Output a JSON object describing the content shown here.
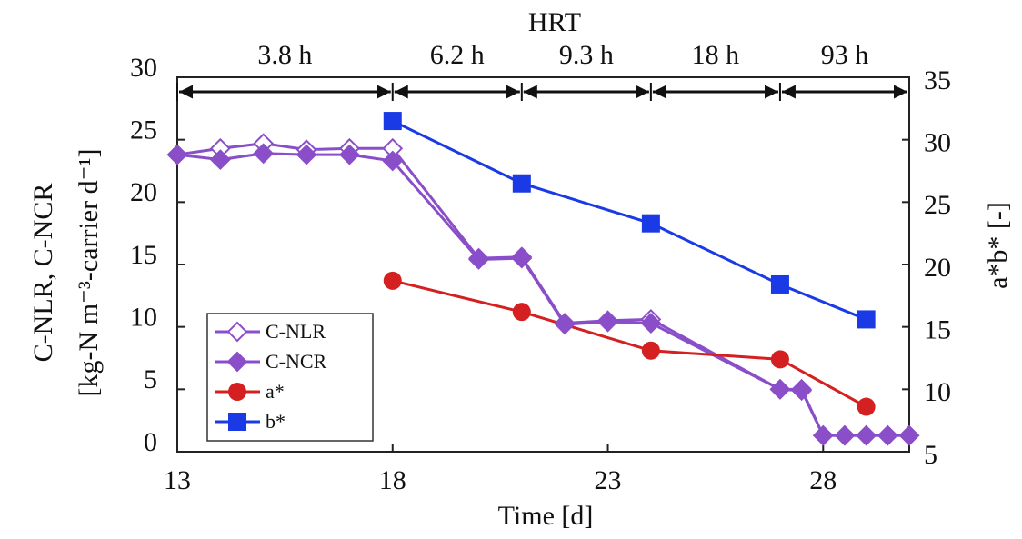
{
  "chart_data": {
    "type": "line",
    "title": "HRT",
    "x_label": "Time [d]",
    "y_label": "C-NLR, C-NCR",
    "y_label_units": "[kg-N m⁻³-carrier d⁻¹]",
    "y2_label": "a*b* [-]",
    "xlim": [
      13,
      30
    ],
    "xticks": [
      13,
      18,
      23,
      28
    ],
    "ylim": [
      0,
      30
    ],
    "yticks": [
      0,
      5,
      10,
      15,
      20,
      25,
      30
    ],
    "y2lim": [
      5,
      35
    ],
    "y2ticks": [
      5,
      10,
      15,
      20,
      25,
      30,
      35
    ],
    "legend": "lower left",
    "hrt_segments": [
      {
        "label": "3.8 h",
        "start": 13,
        "end": 18
      },
      {
        "label": "6.2 h",
        "start": 18,
        "end": 21
      },
      {
        "label": "9.3 h",
        "start": 21,
        "end": 24
      },
      {
        "label": "18 h",
        "start": 24,
        "end": 27
      },
      {
        "label": "93 h",
        "start": 27,
        "end": 30
      }
    ],
    "series": [
      {
        "name": "C-NLR",
        "color": "#8a4fc8",
        "marker": "open-diamond",
        "x": [
          13,
          14,
          15,
          16,
          17,
          18,
          20,
          21,
          22,
          23,
          24,
          27,
          27.5,
          28,
          28.5,
          29,
          29.5,
          30
        ],
        "values": [
          23.8,
          24.3,
          24.7,
          24.2,
          24.3,
          24.3,
          15.5,
          15.6,
          10.3,
          10.5,
          10.6,
          5.0,
          5.0,
          1.3,
          1.3,
          1.3,
          1.3,
          1.3
        ]
      },
      {
        "name": "C-NCR",
        "color": "#8a4fc8",
        "marker": "diamond",
        "x": [
          13,
          14,
          15,
          16,
          17,
          18,
          20,
          21,
          22,
          23,
          24,
          27,
          27.5,
          28,
          28.5,
          29,
          29.5,
          30
        ],
        "values": [
          23.8,
          23.4,
          23.9,
          23.8,
          23.8,
          23.3,
          15.4,
          15.5,
          10.2,
          10.4,
          10.3,
          5.0,
          4.9,
          1.3,
          1.3,
          1.3,
          1.3,
          1.3
        ]
      },
      {
        "name": "a*",
        "color": "#d42020",
        "marker": "circle",
        "axis": "y2",
        "x": [
          18,
          21,
          24,
          27,
          29
        ],
        "values": [
          18.7,
          16.2,
          13.1,
          12.4,
          8.6
        ]
      },
      {
        "name": "b*",
        "color": "#1a3ae6",
        "marker": "square",
        "axis": "y2",
        "x": [
          18,
          21,
          24,
          27,
          29
        ],
        "values": [
          31.5,
          26.5,
          23.3,
          18.4,
          15.6
        ]
      }
    ]
  }
}
